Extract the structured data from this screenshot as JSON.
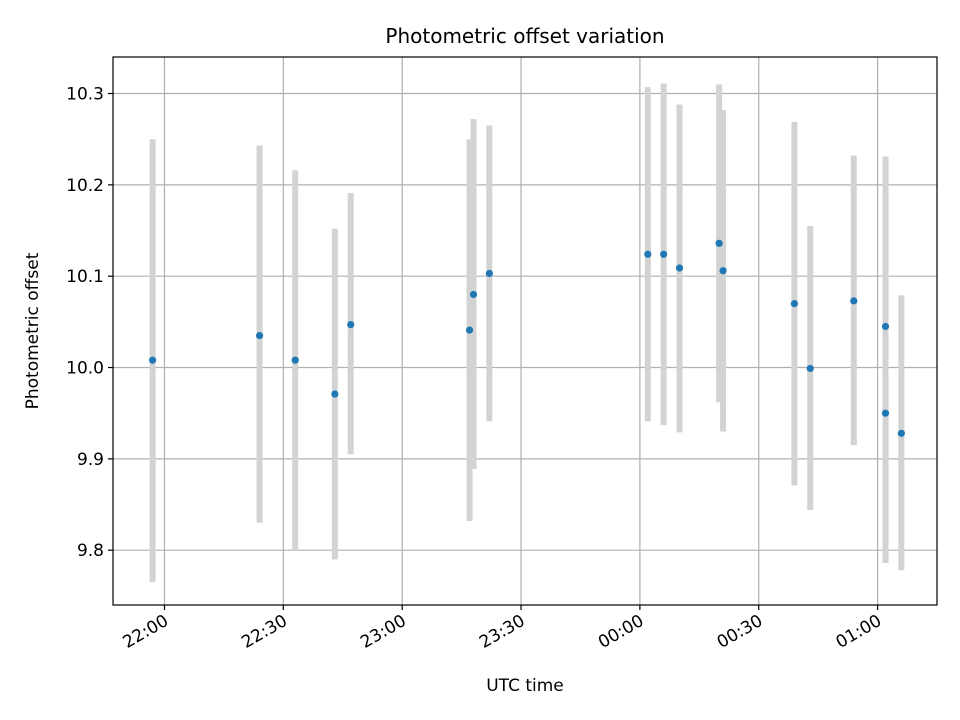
{
  "chart_data": {
    "type": "scatter",
    "title": "Photometric offset variation",
    "xlabel": "UTC time",
    "ylabel": "Photometric offset",
    "xlim": [
      "21:47",
      "01:15"
    ],
    "ylim": [
      9.74,
      10.34
    ],
    "x_ticks": [
      "22:00",
      "22:30",
      "23:00",
      "23:30",
      "00:00",
      "00:30",
      "01:00"
    ],
    "y_ticks": [
      "9.8",
      "9.9",
      "10.0",
      "10.1",
      "10.2",
      "10.3"
    ],
    "grid": true,
    "marker_color": "#1f77b4",
    "errorbar_color": "#d3d3d3",
    "points": [
      {
        "x": "21:57",
        "y": 10.008,
        "lo": 9.765,
        "hi": 10.25
      },
      {
        "x": "22:24",
        "y": 10.035,
        "lo": 9.83,
        "hi": 10.243
      },
      {
        "x": "22:33",
        "y": 10.008,
        "lo": 9.8,
        "hi": 10.216
      },
      {
        "x": "22:43",
        "y": 9.971,
        "lo": 9.79,
        "hi": 10.152
      },
      {
        "x": "22:47",
        "y": 10.047,
        "lo": 9.905,
        "hi": 10.191
      },
      {
        "x": "23:17",
        "y": 10.041,
        "lo": 9.832,
        "hi": 10.25
      },
      {
        "x": "23:18",
        "y": 10.08,
        "lo": 9.889,
        "hi": 10.272
      },
      {
        "x": "23:22",
        "y": 10.103,
        "lo": 9.941,
        "hi": 10.265
      },
      {
        "x": "00:02",
        "y": 10.124,
        "lo": 9.941,
        "hi": 10.307
      },
      {
        "x": "00:06",
        "y": 10.124,
        "lo": 9.937,
        "hi": 10.311
      },
      {
        "x": "00:10",
        "y": 10.109,
        "lo": 9.929,
        "hi": 10.288
      },
      {
        "x": "00:20",
        "y": 10.136,
        "lo": 9.962,
        "hi": 10.31
      },
      {
        "x": "00:21",
        "y": 10.106,
        "lo": 9.93,
        "hi": 10.282
      },
      {
        "x": "00:39",
        "y": 10.07,
        "lo": 9.871,
        "hi": 10.269
      },
      {
        "x": "00:43",
        "y": 9.999,
        "lo": 9.844,
        "hi": 10.155
      },
      {
        "x": "00:54",
        "y": 10.073,
        "lo": 9.915,
        "hi": 10.232
      },
      {
        "x": "01:02",
        "y": 10.045,
        "lo": 9.861,
        "hi": 10.231
      },
      {
        "x": "01:02",
        "y": 9.95,
        "lo": 9.786,
        "hi": 10.113
      },
      {
        "x": "01:06",
        "y": 9.928,
        "lo": 9.778,
        "hi": 10.079
      }
    ]
  }
}
